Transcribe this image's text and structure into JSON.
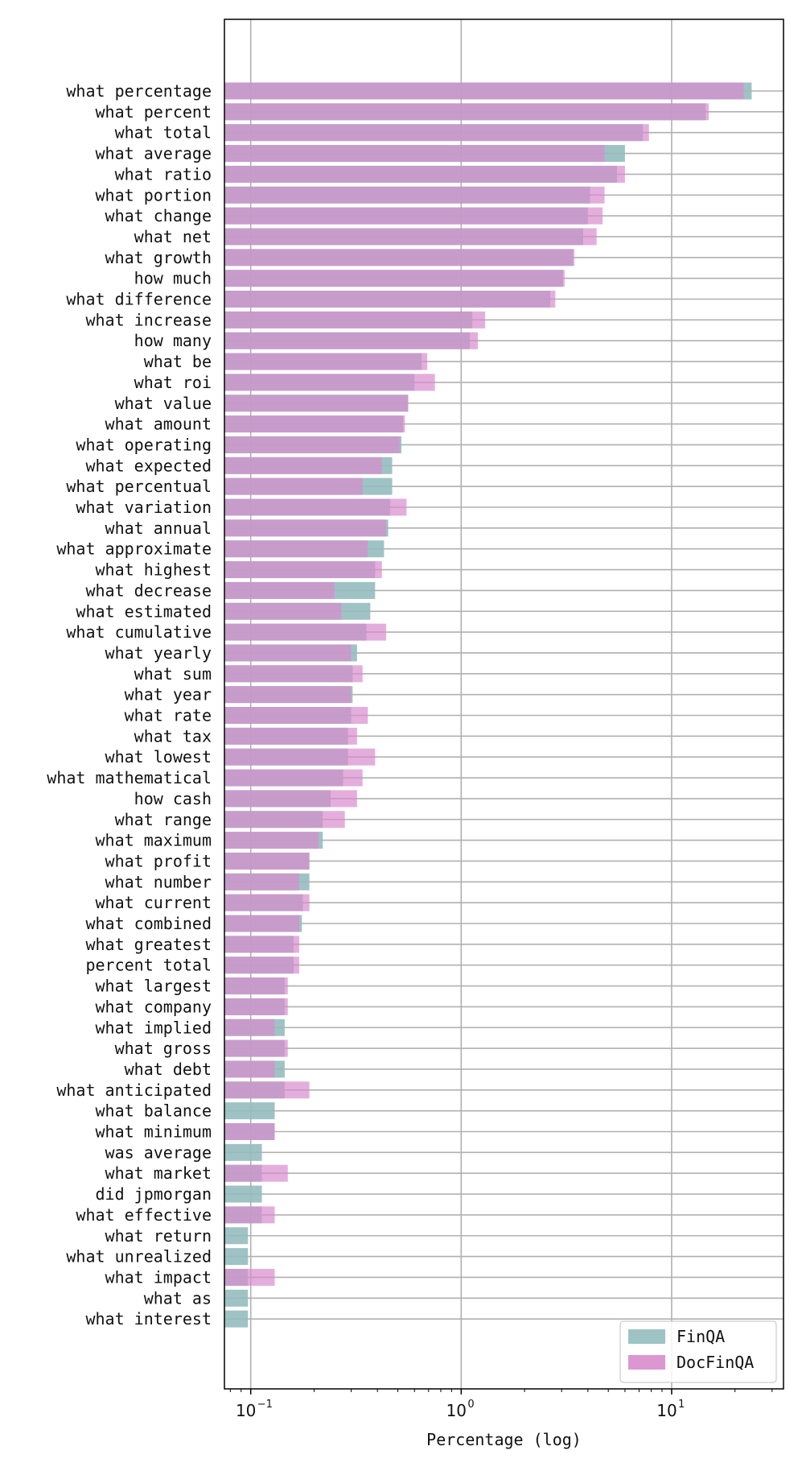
{
  "chart_data": {
    "type": "bar",
    "orientation": "horizontal",
    "xscale": "log",
    "xlabel": "Percentage (log)",
    "ylabel": "",
    "xlim": [
      0.075,
      34
    ],
    "xticks": [
      {
        "value": 0.1,
        "base": "10",
        "exp": "−1"
      },
      {
        "value": 1,
        "base": "10",
        "exp": "0"
      },
      {
        "value": 10,
        "base": "10",
        "exp": "1"
      }
    ],
    "grid": true,
    "legend_position": "bottom-right",
    "categories": [
      "what percentage",
      "what percent",
      "what total",
      "what average",
      "what ratio",
      "what portion",
      "what change",
      "what net",
      "what growth",
      "how much",
      "what difference",
      "what increase",
      "how many",
      "what be",
      "what roi",
      "what value",
      "what amount",
      "what operating",
      "what expected",
      "what percentual",
      "what variation",
      "what annual",
      "what approximate",
      "what highest",
      "what decrease",
      "what estimated",
      "what cumulative",
      "what yearly",
      "what sum",
      "what year",
      "what rate",
      "what tax",
      "what lowest",
      "what mathematical",
      "how cash",
      "what range",
      "what maximum",
      "what profit",
      "what number",
      "what current",
      "what combined",
      "what greatest",
      "percent total",
      "what largest",
      "what company",
      "what implied",
      "what gross",
      "what debt",
      "what anticipated",
      "what balance",
      "what minimum",
      "was average",
      "what market",
      "did jpmorgan",
      "what effective",
      "what return",
      "what unrealized",
      "what impact",
      "what as",
      "what interest"
    ],
    "series": [
      {
        "name": "FinQA",
        "color": "#95bcbf",
        "values": [
          24.0,
          14.5,
          7.3,
          6.0,
          5.5,
          4.1,
          4.0,
          3.8,
          3.4,
          3.05,
          2.65,
          1.13,
          1.1,
          0.65,
          0.6,
          0.56,
          0.53,
          0.52,
          0.47,
          0.47,
          0.46,
          0.45,
          0.43,
          0.39,
          0.39,
          0.37,
          0.355,
          0.32,
          0.305,
          0.305,
          0.3,
          0.29,
          0.29,
          0.275,
          0.24,
          0.22,
          0.22,
          0.19,
          0.19,
          0.177,
          0.175,
          0.16,
          0.16,
          0.145,
          0.145,
          0.145,
          0.145,
          0.145,
          0.145,
          0.13,
          0.13,
          0.113,
          0.113,
          0.113,
          0.113,
          0.097,
          0.097,
          0.097,
          0.097,
          0.097
        ]
      },
      {
        "name": "DocFinQA",
        "color": "#d88ccd",
        "values": [
          22.0,
          15.0,
          7.8,
          4.8,
          6.0,
          4.8,
          4.7,
          4.4,
          3.45,
          3.1,
          2.8,
          1.3,
          1.2,
          0.69,
          0.75,
          0.56,
          0.54,
          0.51,
          0.42,
          0.34,
          0.55,
          0.44,
          0.36,
          0.42,
          0.25,
          0.27,
          0.44,
          0.3,
          0.34,
          0.3,
          0.36,
          0.32,
          0.39,
          0.34,
          0.32,
          0.28,
          0.21,
          0.19,
          0.17,
          0.19,
          0.17,
          0.17,
          0.17,
          0.15,
          0.15,
          0.13,
          0.15,
          0.13,
          0.19,
          0.0,
          0.13,
          0.0,
          0.15,
          0.0,
          0.13,
          0.0,
          0.0,
          0.13,
          0.0,
          0.0
        ]
      }
    ]
  }
}
